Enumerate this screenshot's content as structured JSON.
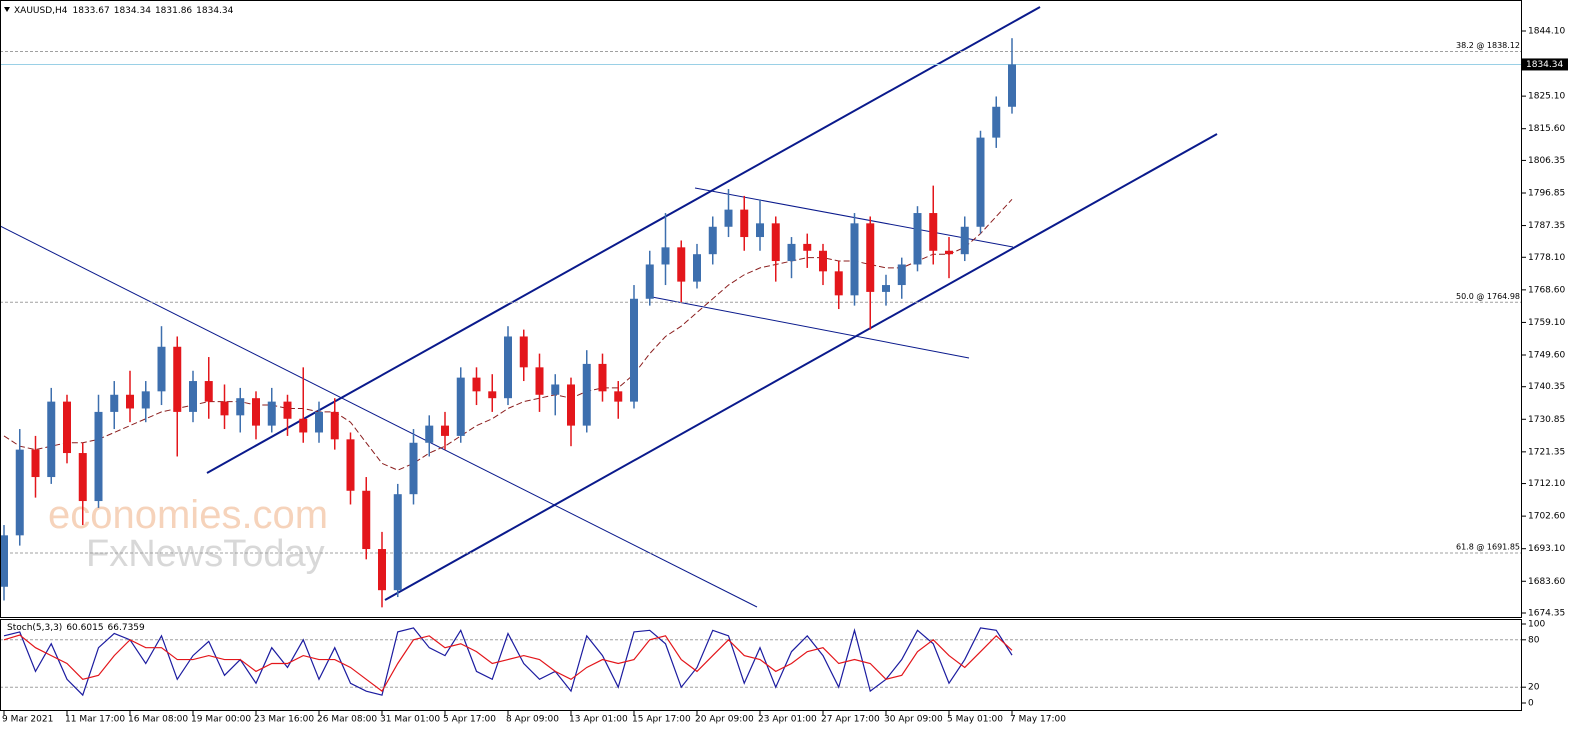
{
  "chart_data": [
    {
      "type": "candlestick",
      "title": "XAUUSD,H4",
      "header_ohlc": [
        1833.67,
        1834.34,
        1831.86,
        1834.34
      ],
      "categories": [
        "9 Mar 2021",
        null,
        null,
        null,
        "11 Mar 17:00",
        null,
        null,
        null,
        "16 Mar 08:00",
        null,
        null,
        null,
        "19 Mar 00:00",
        null,
        null,
        null,
        "23 Mar 16:00",
        null,
        null,
        null,
        "26 Mar 08:00",
        null,
        null,
        null,
        "31 Mar 01:00",
        null,
        null,
        null,
        "5 Apr 17:00",
        null,
        null,
        null,
        "8 Apr 09:00",
        null,
        null,
        null,
        "13 Apr 01:00",
        null,
        null,
        null,
        "15 Apr 17:00",
        null,
        null,
        null,
        "20 Apr 09:00",
        null,
        null,
        null,
        "23 Apr 01:00",
        null,
        null,
        null,
        "27 Apr 17:00",
        null,
        null,
        null,
        "30 Apr 09:00",
        null,
        null,
        null,
        "5 May 01:00",
        null,
        null,
        null,
        "7 May 17:00"
      ],
      "open": [
        1682,
        1697,
        1722,
        1714,
        1736,
        1721,
        1707,
        1733,
        1738,
        1734,
        1739,
        1752,
        1733,
        1742,
        1736,
        1732,
        1737,
        1729,
        1736,
        1731,
        1727,
        1733,
        1725,
        1710,
        1693,
        1681,
        1709,
        1724,
        1729,
        1726,
        1743,
        1739,
        1737,
        1755,
        1746,
        1738,
        1741,
        1729,
        1747,
        1739,
        1736,
        1766,
        1776,
        1781,
        1771,
        1779,
        1787,
        1792,
        1784,
        1788,
        1777,
        1782,
        1780,
        1774,
        1767,
        1788,
        1768,
        1770,
        1776,
        1791,
        1780,
        1779,
        1787,
        1813,
        1822
      ],
      "high": [
        1700,
        1728,
        1726,
        1740,
        1738,
        1724,
        1738,
        1742,
        1745,
        1742,
        1758,
        1755,
        1745,
        1749,
        1741,
        1740,
        1739,
        1740,
        1738,
        1746,
        1736,
        1737,
        1727,
        1714,
        1698,
        1712,
        1728,
        1732,
        1733,
        1746,
        1746,
        1744,
        1758,
        1757,
        1750,
        1744,
        1743,
        1751,
        1750,
        1742,
        1770,
        1780,
        1791,
        1783,
        1782,
        1790,
        1798,
        1796,
        1795,
        1790,
        1784,
        1785,
        1782,
        1777,
        1791,
        1790,
        1773,
        1778,
        1793,
        1799,
        1784,
        1790,
        1815,
        1825,
        1842
      ],
      "low": [
        1678,
        1694,
        1708,
        1712,
        1718,
        1700,
        1705,
        1728,
        1730,
        1730,
        1735,
        1720,
        1730,
        1731,
        1728,
        1727,
        1725,
        1727,
        1726,
        1724,
        1724,
        1722,
        1706,
        1690,
        1676,
        1679,
        1706,
        1720,
        1722,
        1724,
        1735,
        1733,
        1735,
        1742,
        1733,
        1732,
        1723,
        1727,
        1736,
        1731,
        1734,
        1764,
        1770,
        1765,
        1769,
        1776,
        1784,
        1780,
        1780,
        1771,
        1772,
        1775,
        1770,
        1763,
        1764,
        1757,
        1764,
        1766,
        1774,
        1776,
        1772,
        1777,
        1785,
        1810,
        1820
      ],
      "close": [
        1697,
        1722,
        1714,
        1736,
        1721,
        1707,
        1733,
        1738,
        1734,
        1739,
        1752,
        1733,
        1742,
        1736,
        1732,
        1737,
        1729,
        1736,
        1731,
        1727,
        1733,
        1725,
        1710,
        1693,
        1681,
        1709,
        1724,
        1729,
        1726,
        1743,
        1739,
        1737,
        1755,
        1746,
        1738,
        1741,
        1729,
        1747,
        1739,
        1736,
        1766,
        1776,
        1781,
        1771,
        1779,
        1787,
        1792,
        1784,
        1788,
        1777,
        1782,
        1780,
        1774,
        1767,
        1788,
        1768,
        1770,
        1776,
        1791,
        1780,
        1779,
        1787,
        1813,
        1822,
        1834.34
      ],
      "up_color": "#3d6fae",
      "down_color": "#e3161b",
      "ma": [
        1726,
        1723,
        1722,
        1723,
        1724,
        1724,
        1725,
        1727,
        1729,
        1731,
        1733,
        1734,
        1735,
        1736,
        1736,
        1736,
        1735,
        1735,
        1734,
        1734,
        1733,
        1733,
        1730,
        1724,
        1718,
        1716,
        1718,
        1721,
        1723,
        1726,
        1729,
        1731,
        1734,
        1736,
        1737,
        1738,
        1737,
        1739,
        1740,
        1740,
        1744,
        1750,
        1755,
        1758,
        1762,
        1766,
        1770,
        1773,
        1775,
        1776,
        1777,
        1778,
        1778,
        1777,
        1777,
        1776,
        1775,
        1775,
        1777,
        1779,
        1779,
        1781,
        1785,
        1790,
        1795
      ],
      "ma_color": "#8b1e1e",
      "ylim": [
        1673.18,
        1853.14
      ],
      "yticks": [
        1674.35,
        {
          "value": 1683.6,
          "label": "1683.60"
        },
        {
          "value": 1693.1,
          "label": "1693.10"
        },
        {
          "value": 1702.6,
          "label": "1702.60"
        },
        {
          "value": 1712.1,
          "label": "1712.10"
        },
        1721.35,
        1730.85,
        1740.35,
        {
          "value": 1749.6,
          "label": "1749.60"
        },
        {
          "value": 1759.1,
          "label": "1759.10"
        },
        {
          "value": 1768.6,
          "label": "1768.60"
        },
        {
          "value": 1778.1,
          "label": "1778.10"
        },
        1787.35,
        1796.85,
        1806.35,
        {
          "value": 1815.6,
          "label": "1815.60"
        },
        {
          "value": 1825.1,
          "label": "1825.10"
        },
        {
          "value": 1844.1,
          "label": "1844.10"
        }
      ],
      "levels": [
        {
          "label": "38.2 @ 1838.12",
          "value": 1838.12
        },
        {
          "label": "50.0 @ 1764.98",
          "value": 1764.98
        },
        {
          "label": "61.8 @ 1691.85",
          "value": 1691.85
        }
      ],
      "watermark": [
        "economies.com",
        "FxNewsToday"
      ]
    },
    {
      "type": "line",
      "title": "Stoch(5,3,3)",
      "header_values": [
        60.6015,
        66.7359
      ],
      "series": [
        {
          "color": "#1c1ca0",
          "values": [
            85,
            90,
            40,
            75,
            30,
            10,
            70,
            88,
            80,
            50,
            85,
            30,
            60,
            78,
            35,
            55,
            25,
            70,
            45,
            80,
            30,
            70,
            25,
            15,
            10,
            90,
            95,
            70,
            60,
            92,
            40,
            30,
            88,
            50,
            30,
            40,
            15,
            85,
            60,
            20,
            90,
            92,
            75,
            20,
            45,
            92,
            85,
            25,
            70,
            20,
            65,
            85,
            60,
            20,
            92,
            15,
            30,
            55,
            92,
            75,
            25,
            55,
            95,
            92,
            60.6015
          ]
        },
        {
          "color": "#e3161b",
          "values": [
            80,
            86,
            70,
            60,
            50,
            30,
            35,
            60,
            80,
            70,
            70,
            55,
            55,
            60,
            55,
            55,
            40,
            50,
            50,
            60,
            55,
            55,
            45,
            30,
            15,
            50,
            80,
            85,
            70,
            75,
            65,
            50,
            55,
            60,
            55,
            40,
            30,
            45,
            55,
            50,
            55,
            80,
            85,
            55,
            40,
            60,
            80,
            60,
            55,
            40,
            50,
            65,
            70,
            50,
            55,
            50,
            30,
            35,
            65,
            80,
            60,
            45,
            65,
            85,
            66.7359
          ]
        }
      ],
      "ylim": [
        0,
        100
      ],
      "yticks": [
        100,
        80,
        20,
        0
      ],
      "level_lines": [
        80,
        20
      ]
    }
  ]
}
